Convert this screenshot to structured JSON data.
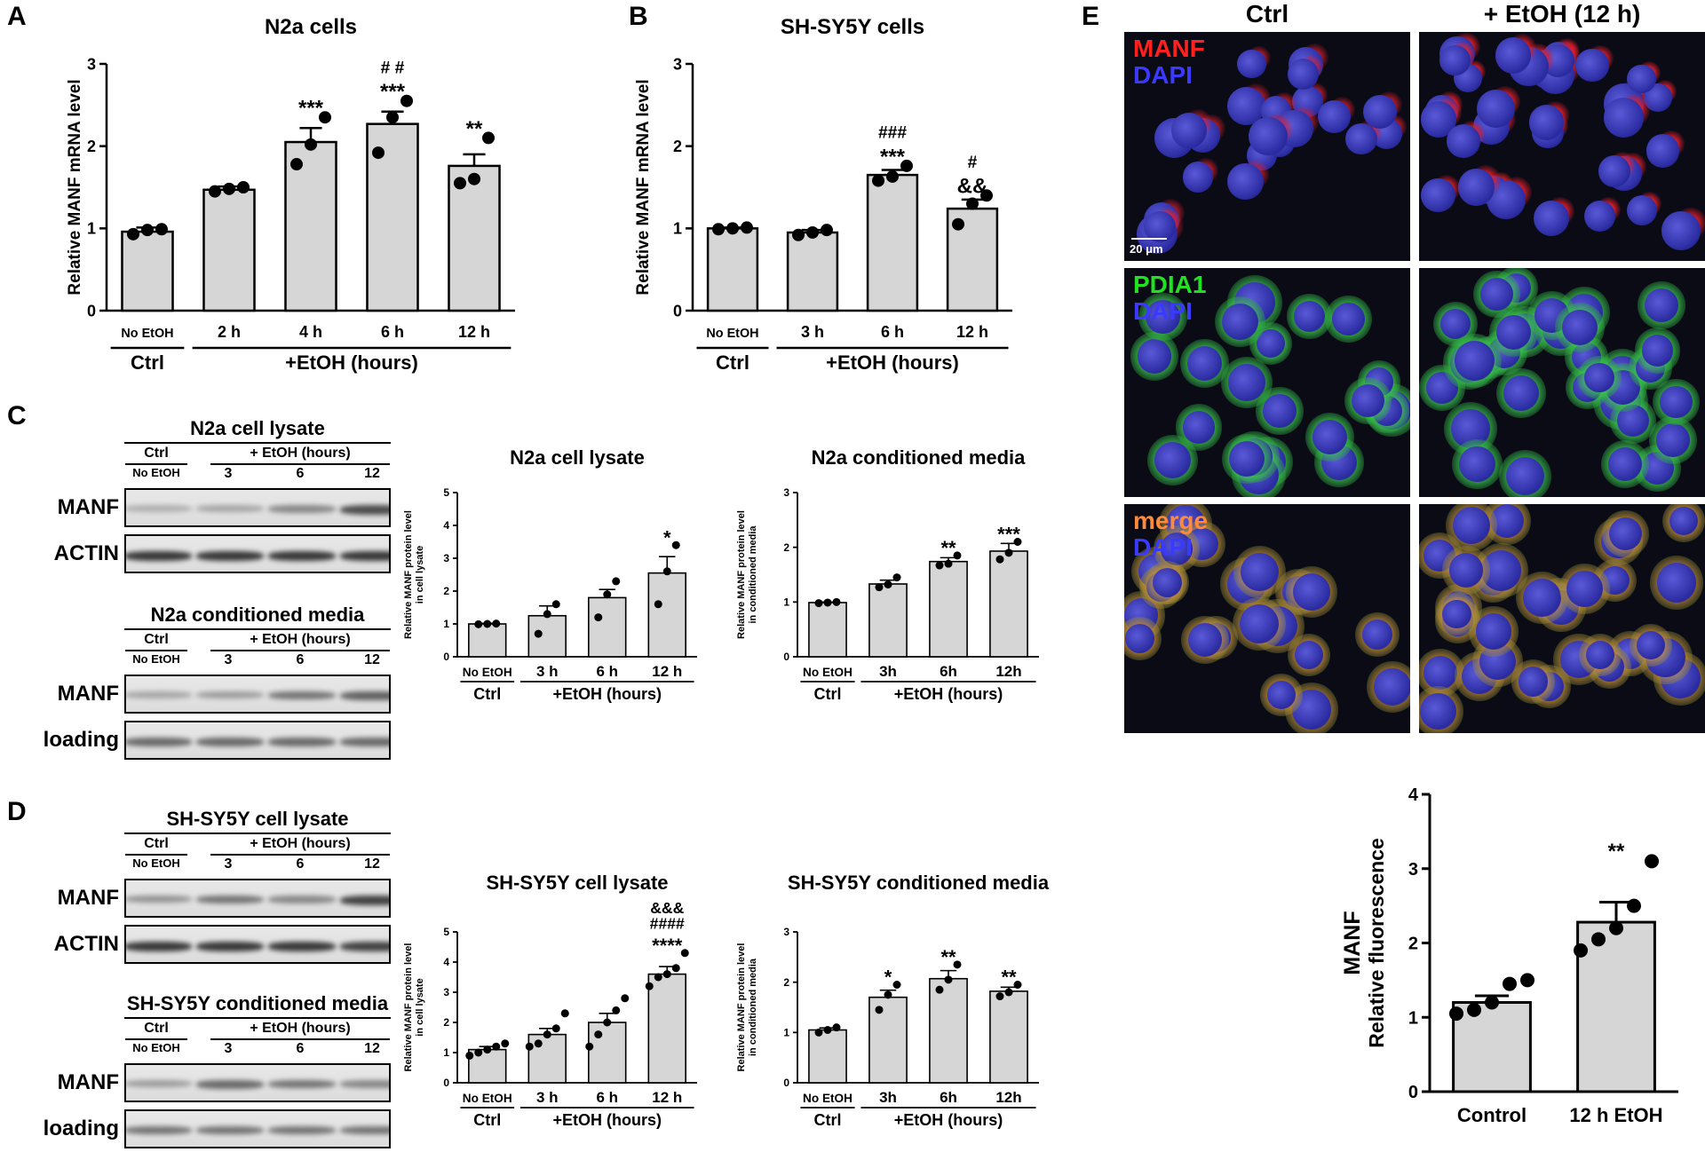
{
  "panels": {
    "A": {
      "label": "A",
      "chart_data": {
        "type": "bar",
        "title": "N2a cells",
        "ylabel": "Relative MANF mRNA level",
        "ylim": [
          0,
          3
        ],
        "yticks": [
          "0",
          "1",
          "2",
          "3"
        ],
        "categories": [
          "No EtOH",
          "2 h",
          "4 h",
          "6 h",
          "12 h"
        ],
        "values": [
          0.96,
          1.47,
          2.05,
          2.27,
          1.76
        ],
        "errors": [
          0.05,
          0.04,
          0.17,
          0.15,
          0.14
        ],
        "points": [
          [
            0.93,
            0.98,
            0.99
          ],
          [
            1.45,
            1.48,
            1.5
          ],
          [
            1.78,
            2.02,
            2.35
          ],
          [
            1.92,
            2.35,
            2.55
          ],
          [
            1.55,
            1.6,
            2.1
          ]
        ],
        "sig": [
          "",
          "",
          "***",
          "***",
          "**"
        ],
        "sig2": [
          "",
          "",
          "",
          "# #",
          ""
        ],
        "sig3": [
          "",
          "",
          "",
          "",
          ""
        ],
        "groups": [
          {
            "label": "Ctrl",
            "from": 0,
            "to": 0
          },
          {
            "label": "+EtOH (hours)",
            "from": 1,
            "to": 4
          }
        ]
      }
    },
    "B": {
      "label": "B",
      "chart_data": {
        "type": "bar",
        "title": "SH-SY5Y cells",
        "ylabel": "Relative MANF mRNA level",
        "ylim": [
          0,
          3
        ],
        "yticks": [
          "0",
          "1",
          "2",
          "3"
        ],
        "categories": [
          "No EtOH",
          "3 h",
          "6 h",
          "12 h"
        ],
        "values": [
          1.0,
          0.95,
          1.65,
          1.24
        ],
        "errors": [
          0.01,
          0.03,
          0.06,
          0.11
        ],
        "points": [
          [
            0.99,
            1.0,
            1.01
          ],
          [
            0.92,
            0.95,
            0.98
          ],
          [
            1.58,
            1.63,
            1.76
          ],
          [
            1.05,
            1.3,
            1.4
          ]
        ],
        "sig": [
          "",
          "",
          "***",
          "&&"
        ],
        "sig2": [
          "",
          "",
          "###",
          "#"
        ],
        "sig3": [
          "",
          "",
          "",
          ""
        ],
        "groups": [
          {
            "label": "Ctrl",
            "from": 0,
            "to": 0
          },
          {
            "label": "+EtOH (hours)",
            "from": 1,
            "to": 3
          }
        ]
      }
    },
    "C": {
      "label": "C",
      "blots": [
        {
          "title": "N2a cell lysate",
          "ctrl_label": "Ctrl",
          "etoh_label": "+ EtOH (hours)",
          "lanes": [
            "No EtOH",
            "3",
            "6",
            "12"
          ],
          "rows": [
            {
              "label": "MANF",
              "intensity": [
                0.25,
                0.3,
                0.45,
                0.75
              ]
            },
            {
              "label": "ACTIN",
              "intensity": [
                0.85,
                0.85,
                0.85,
                0.85
              ]
            }
          ]
        },
        {
          "title": "N2a conditioned media",
          "ctrl_label": "Ctrl",
          "etoh_label": "+ EtOH (hours)",
          "lanes": [
            "No EtOH",
            "3",
            "6",
            "12"
          ],
          "rows": [
            {
              "label": "MANF",
              "intensity": [
                0.3,
                0.35,
                0.55,
                0.65
              ]
            },
            {
              "label": "loading",
              "intensity": [
                0.6,
                0.6,
                0.6,
                0.6
              ]
            }
          ]
        }
      ],
      "charts": [
        {
          "type": "bar",
          "title": "N2a cell lysate",
          "ylabel": "Relative MANF protein level",
          "ylabel2": "in cell lysate",
          "ylim": [
            0,
            5
          ],
          "yticks": [
            "0",
            "1",
            "2",
            "3",
            "4",
            "5"
          ],
          "categories": [
            "No EtOH",
            "3 h",
            "6 h",
            "12 h"
          ],
          "values": [
            1.0,
            1.25,
            1.8,
            2.55
          ],
          "errors": [
            0.02,
            0.3,
            0.25,
            0.5
          ],
          "points": [
            [
              0.99,
              1.0,
              1.01
            ],
            [
              0.7,
              1.3,
              1.6
            ],
            [
              1.2,
              1.9,
              2.3
            ],
            [
              1.6,
              2.6,
              3.4
            ]
          ],
          "sig": [
            "",
            "",
            "",
            "*"
          ],
          "sig2": [
            "",
            "",
            "",
            ""
          ],
          "sig3": [
            "",
            "",
            "",
            ""
          ],
          "groups": [
            {
              "label": "Ctrl",
              "from": 0,
              "to": 0
            },
            {
              "label": "+EtOH (hours)",
              "from": 1,
              "to": 3
            }
          ]
        },
        {
          "type": "bar",
          "title": "N2a conditioned media",
          "ylabel": "Relative MANF protein level",
          "ylabel2": "in conditioned media",
          "ylim": [
            0,
            3
          ],
          "yticks": [
            "0",
            "1",
            "2",
            "3"
          ],
          "categories": [
            "No EtOH",
            "3h",
            "6h",
            "12h"
          ],
          "values": [
            0.99,
            1.33,
            1.74,
            1.93
          ],
          "errors": [
            0.01,
            0.07,
            0.07,
            0.14
          ],
          "points": [
            [
              0.98,
              0.99,
              1.0
            ],
            [
              1.27,
              1.32,
              1.45
            ],
            [
              1.67,
              1.7,
              1.85
            ],
            [
              1.78,
              1.9,
              2.1
            ]
          ],
          "sig": [
            "",
            "",
            "**",
            "***"
          ],
          "sig2": [
            "",
            "",
            "",
            ""
          ],
          "sig3": [
            "",
            "",
            "",
            ""
          ],
          "groups": [
            {
              "label": "Ctrl",
              "from": 0,
              "to": 0
            },
            {
              "label": "+EtOH (hours)",
              "from": 1,
              "to": 3
            }
          ]
        }
      ]
    },
    "D": {
      "label": "D",
      "blots": [
        {
          "title": "SH-SY5Y cell lysate",
          "ctrl_label": "Ctrl",
          "etoh_label": "+ EtOH (hours)",
          "lanes": [
            "No EtOH",
            "3",
            "6",
            "12"
          ],
          "rows": [
            {
              "label": "MANF",
              "intensity": [
                0.4,
                0.55,
                0.45,
                0.8
              ]
            },
            {
              "label": "ACTIN",
              "intensity": [
                0.85,
                0.85,
                0.85,
                0.8
              ]
            }
          ]
        },
        {
          "title": "SH-SY5Y conditioned media",
          "ctrl_label": "Ctrl",
          "etoh_label": "+ EtOH (hours)",
          "lanes": [
            "No EtOH",
            "3",
            "6",
            "12"
          ],
          "rows": [
            {
              "label": "MANF",
              "intensity": [
                0.35,
                0.6,
                0.55,
                0.45
              ]
            },
            {
              "label": "loading",
              "intensity": [
                0.55,
                0.55,
                0.55,
                0.55
              ]
            }
          ]
        }
      ],
      "charts": [
        {
          "type": "bar",
          "title": "SH-SY5Y cell lysate",
          "ylabel": "Relative MANF protein level",
          "ylabel2": "in cell lysate",
          "ylim": [
            0,
            5
          ],
          "yticks": [
            "0",
            "1",
            "2",
            "3",
            "4",
            "5"
          ],
          "categories": [
            "No EtOH",
            "3 h",
            "6 h",
            "12 h"
          ],
          "values": [
            1.1,
            1.6,
            2.0,
            3.6
          ],
          "errors": [
            0.1,
            0.2,
            0.3,
            0.25
          ],
          "points": [
            [
              0.9,
              1.0,
              1.1,
              1.2,
              1.3
            ],
            [
              1.2,
              1.3,
              1.6,
              1.8,
              2.3
            ],
            [
              1.2,
              1.6,
              2.0,
              2.4,
              2.8
            ],
            [
              3.2,
              3.5,
              3.6,
              3.8,
              4.3
            ]
          ],
          "sig": [
            "",
            "",
            "",
            "****"
          ],
          "sig2": [
            "",
            "",
            "",
            "####"
          ],
          "sig3": [
            "",
            "",
            "",
            "&&&"
          ],
          "groups": [
            {
              "label": "Ctrl",
              "from": 0,
              "to": 0
            },
            {
              "label": "+EtOH (hours)",
              "from": 1,
              "to": 3
            }
          ]
        },
        {
          "type": "bar",
          "title": "SH-SY5Y conditioned media",
          "ylabel": "Relative MANF protein level",
          "ylabel2": "in conditioned media",
          "ylim": [
            0,
            3
          ],
          "yticks": [
            "0",
            "1",
            "2",
            "3"
          ],
          "categories": [
            "No EtOH",
            "3h",
            "6h",
            "12h"
          ],
          "values": [
            1.05,
            1.7,
            2.07,
            1.82
          ],
          "errors": [
            0.04,
            0.14,
            0.16,
            0.08
          ],
          "points": [
            [
              1.0,
              1.05,
              1.1
            ],
            [
              1.45,
              1.75,
              1.95
            ],
            [
              1.85,
              2.05,
              2.35
            ],
            [
              1.72,
              1.8,
              1.95
            ]
          ],
          "sig": [
            "",
            "*",
            "**",
            "**"
          ],
          "sig2": [
            "",
            "",
            "",
            ""
          ],
          "sig3": [
            "",
            "",
            "",
            ""
          ],
          "groups": [
            {
              "label": "Ctrl",
              "from": 0,
              "to": 0
            },
            {
              "label": "+EtOH (hours)",
              "from": 1,
              "to": 3
            }
          ]
        }
      ]
    },
    "E": {
      "label": "E",
      "columns": [
        "Ctrl",
        "+ EtOH (12 h)"
      ],
      "rows": [
        {
          "label": "MANF",
          "label_color": "#ff2020",
          "dapi": "DAPI",
          "dapi_color": "#3a3aff"
        },
        {
          "label": "PDIA1",
          "label_color": "#22e022",
          "dapi": "DAPI",
          "dapi_color": "#3a3aff"
        },
        {
          "label": "merge",
          "label_color": "#ff8a3a",
          "dapi": "DAPI",
          "dapi_color": "#3a3aff"
        }
      ],
      "scale_bar": "20 μm",
      "chart_data": {
        "type": "bar",
        "title": "",
        "ylabel": "Relative fluorescence",
        "ylabel_top": "MANF",
        "ylim": [
          0,
          4
        ],
        "yticks": [
          "0",
          "1",
          "2",
          "3",
          "4"
        ],
        "categories": [
          "Control",
          "12 h EtOH"
        ],
        "values": [
          1.2,
          2.28
        ],
        "errors": [
          0.09,
          0.27
        ],
        "points": [
          [
            1.05,
            1.1,
            1.2,
            1.45,
            1.5
          ],
          [
            1.9,
            2.05,
            2.2,
            2.5,
            3.1
          ]
        ],
        "sig": [
          "",
          "**"
        ],
        "sig2": [
          "",
          ""
        ],
        "sig3": [
          "",
          ""
        ],
        "groups": []
      }
    }
  },
  "colors": {
    "bar_fill": "#d6d6d6",
    "axis": "#000000"
  }
}
